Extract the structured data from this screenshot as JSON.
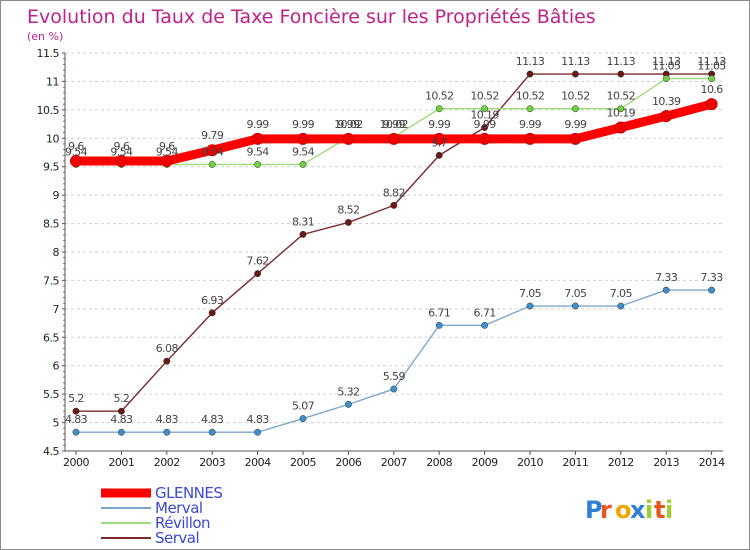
{
  "chart_data": {
    "type": "line",
    "title": "Evolution du Taux de Taxe Foncière sur les Propriétés Bâties",
    "subtitle": "(en %)",
    "x": [
      "2000",
      "2001",
      "2002",
      "2003",
      "2004",
      "2005",
      "2006",
      "2007",
      "2008",
      "2009",
      "2010",
      "2011",
      "2012",
      "2013",
      "2014"
    ],
    "ylim": [
      4.5,
      11.5
    ],
    "yticks": [
      "4.5",
      "5",
      "5.5",
      "6",
      "6.5",
      "7",
      "7.5",
      "8",
      "8.5",
      "9",
      "9.5",
      "10",
      "10.5",
      "11",
      "11.5"
    ],
    "series": [
      {
        "name": "GLENNES",
        "color": "#ff0000",
        "marker": "#ee0000",
        "values": [
          9.6,
          9.6,
          9.6,
          9.79,
          9.99,
          9.99,
          9.99,
          9.99,
          9.99,
          9.99,
          9.99,
          9.99,
          10.19,
          10.39,
          10.6
        ],
        "labels": [
          "9.6",
          "9.6",
          "9.6",
          "9.79",
          "9.99",
          "9.99",
          "9.99",
          "9.99",
          "9.99",
          "9.99",
          "9.99",
          "9.99",
          "10.19",
          "10.39",
          "10.6"
        ]
      },
      {
        "name": "Merval",
        "color": "#7ba7cf",
        "marker": "#3f8fcc",
        "values": [
          4.83,
          4.83,
          4.83,
          4.83,
          4.83,
          5.07,
          5.32,
          5.59,
          6.71,
          6.71,
          7.05,
          7.05,
          7.05,
          7.33,
          7.33
        ],
        "labels": [
          "4.83",
          "4.83",
          "4.83",
          "4.83",
          "4.83",
          "5.07",
          "5.32",
          "5.59",
          "6.71",
          "6.71",
          "7.05",
          "7.05",
          "7.05",
          "7.33",
          "7.33"
        ]
      },
      {
        "name": "Révillon",
        "color": "#9ddc7c",
        "marker": "#6fd040",
        "values": [
          9.54,
          9.54,
          9.54,
          9.54,
          9.54,
          9.54,
          10.02,
          10.02,
          10.52,
          10.52,
          10.52,
          10.52,
          10.52,
          11.05,
          11.05
        ],
        "labels": [
          "9.54",
          "9.54",
          "9.54",
          "9.54",
          "9.54",
          "9.54",
          "10.02",
          "10.02",
          "10.52",
          "10.52",
          "10.52",
          "10.52",
          "10.52",
          "11.05",
          "11.05"
        ]
      },
      {
        "name": "Serval",
        "color": "#7a2a2a",
        "marker": "#6a1818",
        "values": [
          5.2,
          5.2,
          6.08,
          6.93,
          7.62,
          8.31,
          8.52,
          8.82,
          9.7,
          10.19,
          11.13,
          11.13,
          11.13,
          11.13,
          11.13
        ],
        "labels": [
          "5.2",
          "5.2",
          "6.08",
          "6.93",
          "7.62",
          "8.31",
          "8.52",
          "8.82",
          "9.7",
          "10.19",
          "11.13",
          "11.13",
          "11.13",
          "11.13",
          "11.13"
        ]
      }
    ],
    "legend": [
      "GLENNES",
      "Merval",
      "Révillon",
      "Serval"
    ],
    "legend_position": "bottom-left",
    "grid": "horizontal-dashed"
  },
  "brand": {
    "letters": [
      "P",
      "r",
      "o",
      "x",
      "i",
      "t",
      "i"
    ],
    "colors": [
      "#2f7fd6",
      "#e8561c",
      "#f0a400",
      "#2f7fd6",
      "#9fcf2a",
      "#e8561c",
      "#9fcf2a"
    ]
  }
}
